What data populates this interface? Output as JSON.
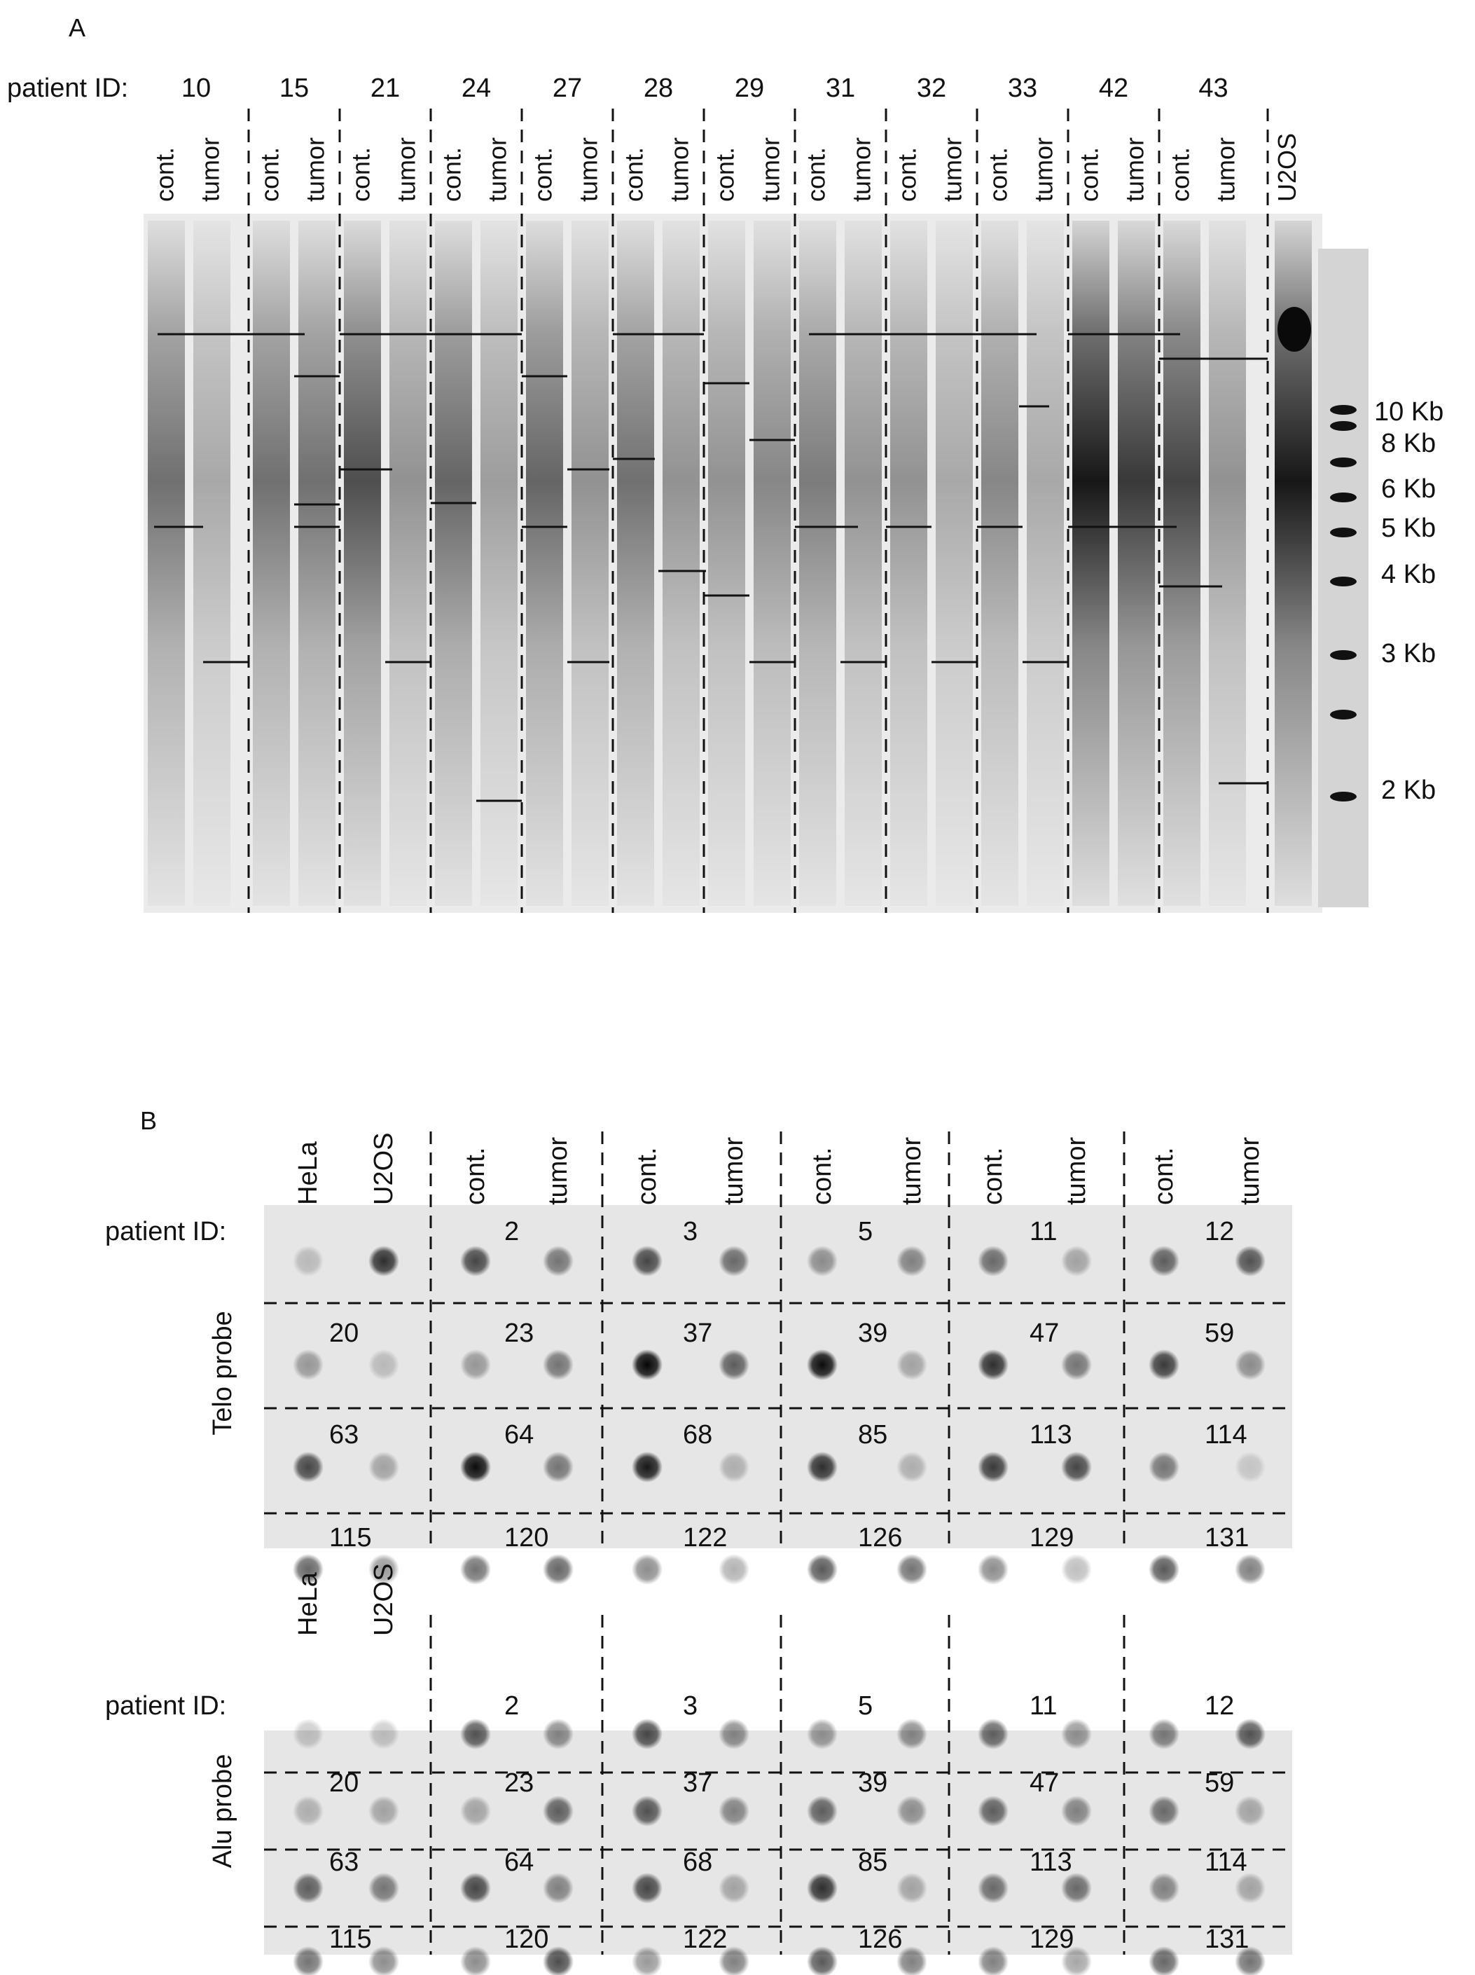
{
  "panel_a": {
    "label": "A",
    "patient_label": "patient ID:",
    "patients": [
      "10",
      "15",
      "21",
      "24",
      "27",
      "28",
      "29",
      "31",
      "32",
      "33",
      "42",
      "43"
    ],
    "lane_labels": [
      "cont.",
      "tumor"
    ],
    "extra_lane": "U2OS",
    "ladder": [
      "10 Kb",
      "8 Kb",
      "6 Kb",
      "5 Kb",
      "4 Kb",
      "3 Kb",
      "2 Kb"
    ],
    "lane_intensity": [
      0.55,
      0.3,
      0.55,
      0.55,
      0.7,
      0.4,
      0.6,
      0.35,
      0.6,
      0.4,
      0.55,
      0.4,
      0.4,
      0.45,
      0.5,
      0.4,
      0.4,
      0.3,
      0.45,
      0.3,
      0.95,
      0.8,
      0.75,
      0.4,
      0.95
    ]
  },
  "panel_b": {
    "label": "B",
    "col_headers": [
      "HeLa",
      "U2OS",
      "cont.",
      "tumor",
      "cont.",
      "tumor",
      "cont.",
      "tumor",
      "cont.",
      "tumor",
      "cont.",
      "tumor"
    ],
    "blots": [
      {
        "patient_label": "patient ID:",
        "probe": "Telo probe",
        "show_headers": false,
        "rows": [
          {
            "ids": [
              "",
              "2",
              "3",
              "5",
              "11",
              "12"
            ],
            "dots": [
              0.2,
              0.8,
              0.7,
              0.5,
              0.7,
              0.55,
              0.4,
              0.45,
              0.55,
              0.3,
              0.6,
              0.65
            ]
          },
          {
            "ids": [
              "20",
              "23",
              "37",
              "39",
              "47",
              "59"
            ],
            "dots": [
              0.35,
              0.2,
              0.35,
              0.5,
              0.98,
              0.6,
              0.95,
              0.3,
              0.8,
              0.5,
              0.75,
              0.4
            ]
          },
          {
            "ids": [
              "63",
              "64",
              "68",
              "85",
              "113",
              "114"
            ],
            "dots": [
              0.7,
              0.3,
              0.95,
              0.5,
              0.9,
              0.25,
              0.8,
              0.25,
              0.75,
              0.7,
              0.5,
              0.15
            ]
          },
          {
            "ids": [
              "115",
              "120",
              "122",
              "126",
              "129",
              "131"
            ],
            "dots": [
              0.6,
              0.4,
              0.55,
              0.6,
              0.45,
              0.3,
              0.65,
              0.55,
              0.45,
              0.25,
              0.65,
              0.5
            ]
          }
        ]
      },
      {
        "patient_label": "patient ID:",
        "probe": "Alu probe",
        "show_headers": true,
        "rows": [
          {
            "ids": [
              "",
              "2",
              "3",
              "5",
              "11",
              "12"
            ],
            "dots": [
              0.2,
              0.2,
              0.65,
              0.45,
              0.7,
              0.45,
              0.4,
              0.45,
              0.6,
              0.4,
              0.5,
              0.65
            ]
          },
          {
            "ids": [
              "20",
              "23",
              "37",
              "39",
              "47",
              "59"
            ],
            "dots": [
              0.25,
              0.3,
              0.3,
              0.6,
              0.65,
              0.45,
              0.6,
              0.4,
              0.6,
              0.45,
              0.55,
              0.3
            ]
          },
          {
            "ids": [
              "63",
              "64",
              "68",
              "85",
              "113",
              "114"
            ],
            "dots": [
              0.6,
              0.5,
              0.7,
              0.45,
              0.7,
              0.3,
              0.8,
              0.3,
              0.55,
              0.55,
              0.45,
              0.3
            ]
          },
          {
            "ids": [
              "115",
              "120",
              "122",
              "126",
              "129",
              "131"
            ],
            "dots": [
              0.55,
              0.45,
              0.45,
              0.7,
              0.4,
              0.5,
              0.65,
              0.5,
              0.5,
              0.35,
              0.6,
              0.55
            ]
          }
        ]
      }
    ]
  }
}
